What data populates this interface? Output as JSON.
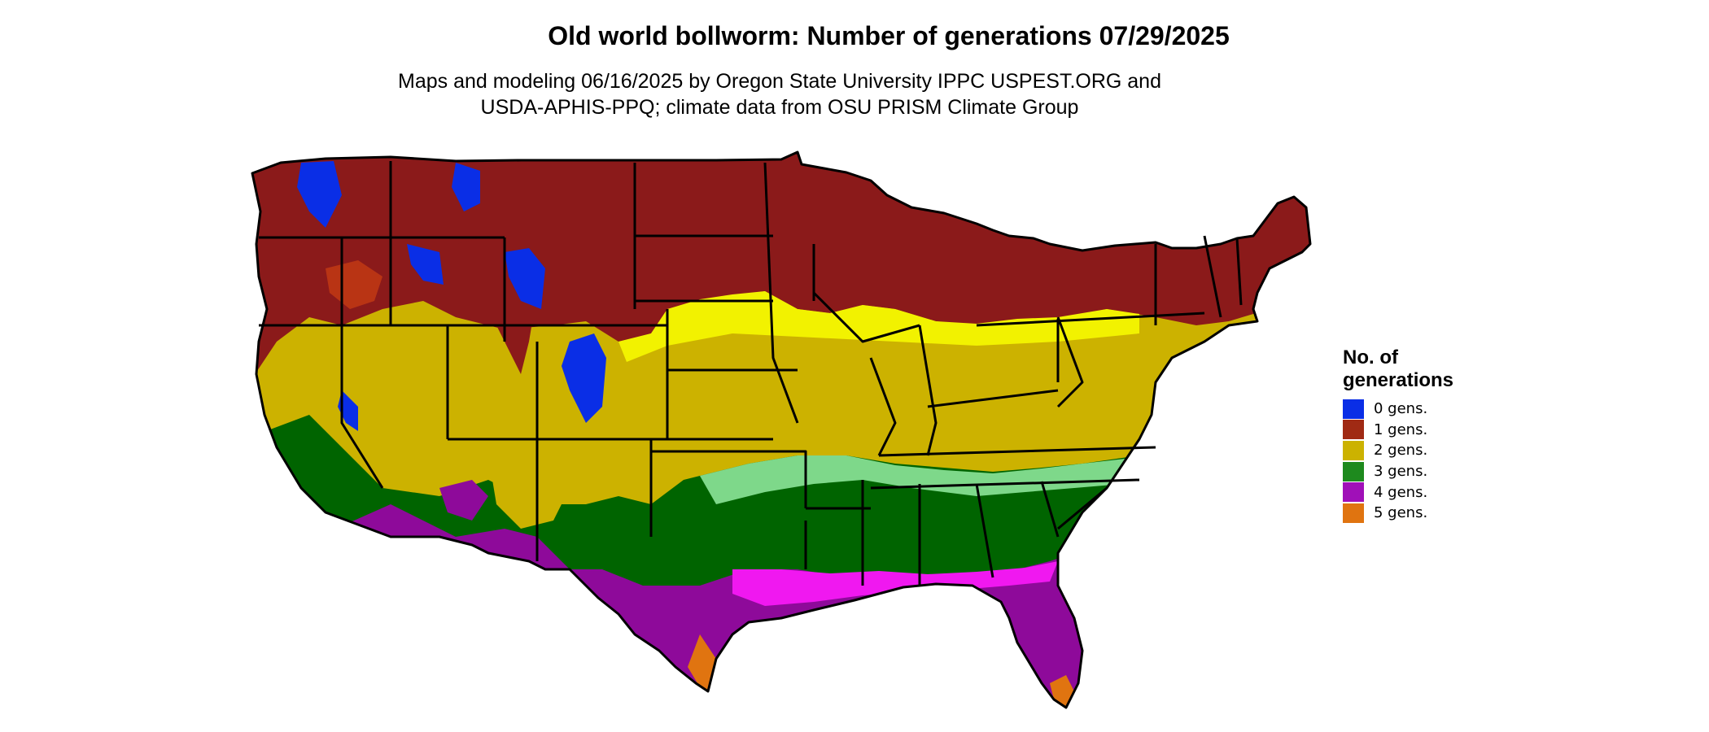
{
  "title": "Old world bollworm: Number of generations 07/29/2025",
  "subtitle_line1": "Maps and modeling 06/16/2025 by Oregon State University IPPC USPEST.ORG and",
  "subtitle_line2": "USDA-APHIS-PPQ; climate data from OSU PRISM Climate Group",
  "legend": {
    "title_line1": "No. of",
    "title_line2": "generations",
    "items": [
      {
        "label": "0 gens.",
        "color": "#0a2ee6"
      },
      {
        "label": "1 gens.",
        "color": "#a02a14"
      },
      {
        "label": "2 gens.",
        "color": "#ccb200"
      },
      {
        "label": "3 gens.",
        "color": "#1e8a1e"
      },
      {
        "label": "4 gens.",
        "color": "#a010b8"
      },
      {
        "label": "5 gens.",
        "color": "#e07410"
      }
    ]
  },
  "map_colors": {
    "gen0": "#0a2ee6",
    "gen1": "#8b1a1a",
    "gen2": "#ccb200",
    "gen2_high": "#f2f200",
    "gen3": "#006400",
    "gen3_light": "#7ed88a",
    "gen4": "#8e0a9a",
    "gen4_high": "#f018f0",
    "gen5": "#e07410",
    "gen1_hot": "#e04a10",
    "border": "#000000"
  }
}
